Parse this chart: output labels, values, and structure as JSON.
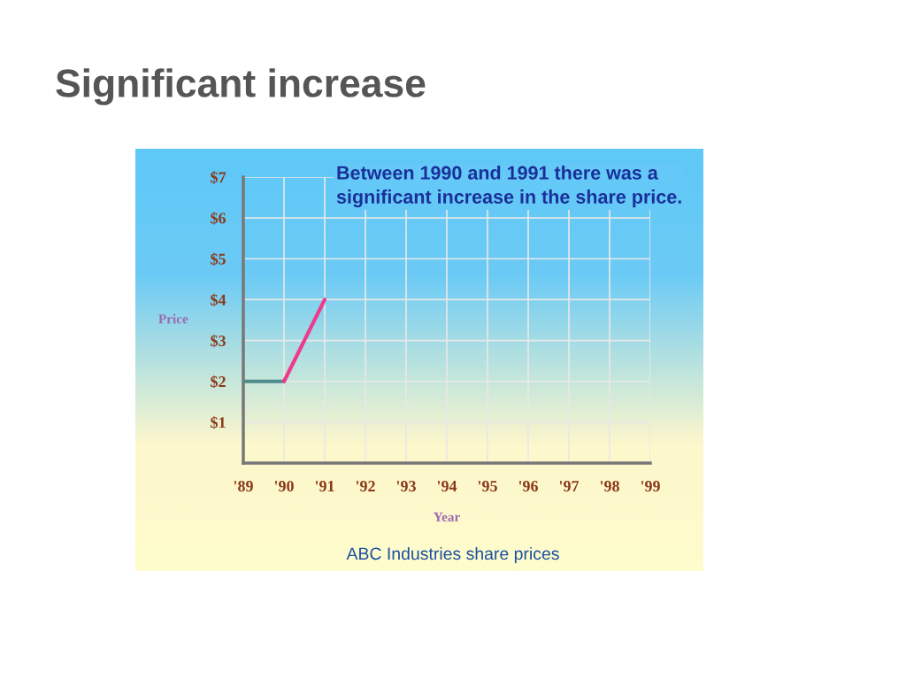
{
  "chart_data": {
    "type": "line",
    "title": "Significant increase",
    "x": [
      1989,
      1990,
      1991
    ],
    "series": [
      {
        "color": "#4f8c8c",
        "values": [
          2,
          2,
          null
        ]
      },
      {
        "color": "#ee3a8c",
        "values": [
          null,
          2,
          4
        ]
      }
    ],
    "xlabel": "Year",
    "ylabel": "Price",
    "xlim": [
      1989,
      1999
    ],
    "xticks": [
      {
        "value": 1989,
        "label": "'89"
      },
      {
        "value": 1990,
        "label": "'90"
      },
      {
        "value": 1991,
        "label": "'91"
      },
      {
        "value": 1992,
        "label": "'92"
      },
      {
        "value": 1993,
        "label": "'93"
      },
      {
        "value": 1994,
        "label": "'94"
      },
      {
        "value": 1995,
        "label": "'95"
      },
      {
        "value": 1996,
        "label": "'96"
      },
      {
        "value": 1997,
        "label": "'97"
      },
      {
        "value": 1998,
        "label": "'98"
      },
      {
        "value": 1999,
        "label": "'99"
      }
    ],
    "ylim": [
      0,
      7
    ],
    "yticks": [
      {
        "value": 1,
        "label": "$1"
      },
      {
        "value": 2,
        "label": "$2"
      },
      {
        "value": 3,
        "label": "$3"
      },
      {
        "value": 4,
        "label": "$4"
      },
      {
        "value": 5,
        "label": "$5"
      },
      {
        "value": 6,
        "label": "$6"
      },
      {
        "value": 7,
        "label": "$7"
      }
    ],
    "grid": true,
    "legend": false,
    "marker": "none",
    "line_style": "solid",
    "annotations": [
      "Between 1990 and 1991 there was a significant increase in the share price.",
      "ABC Industries share prices"
    ]
  }
}
